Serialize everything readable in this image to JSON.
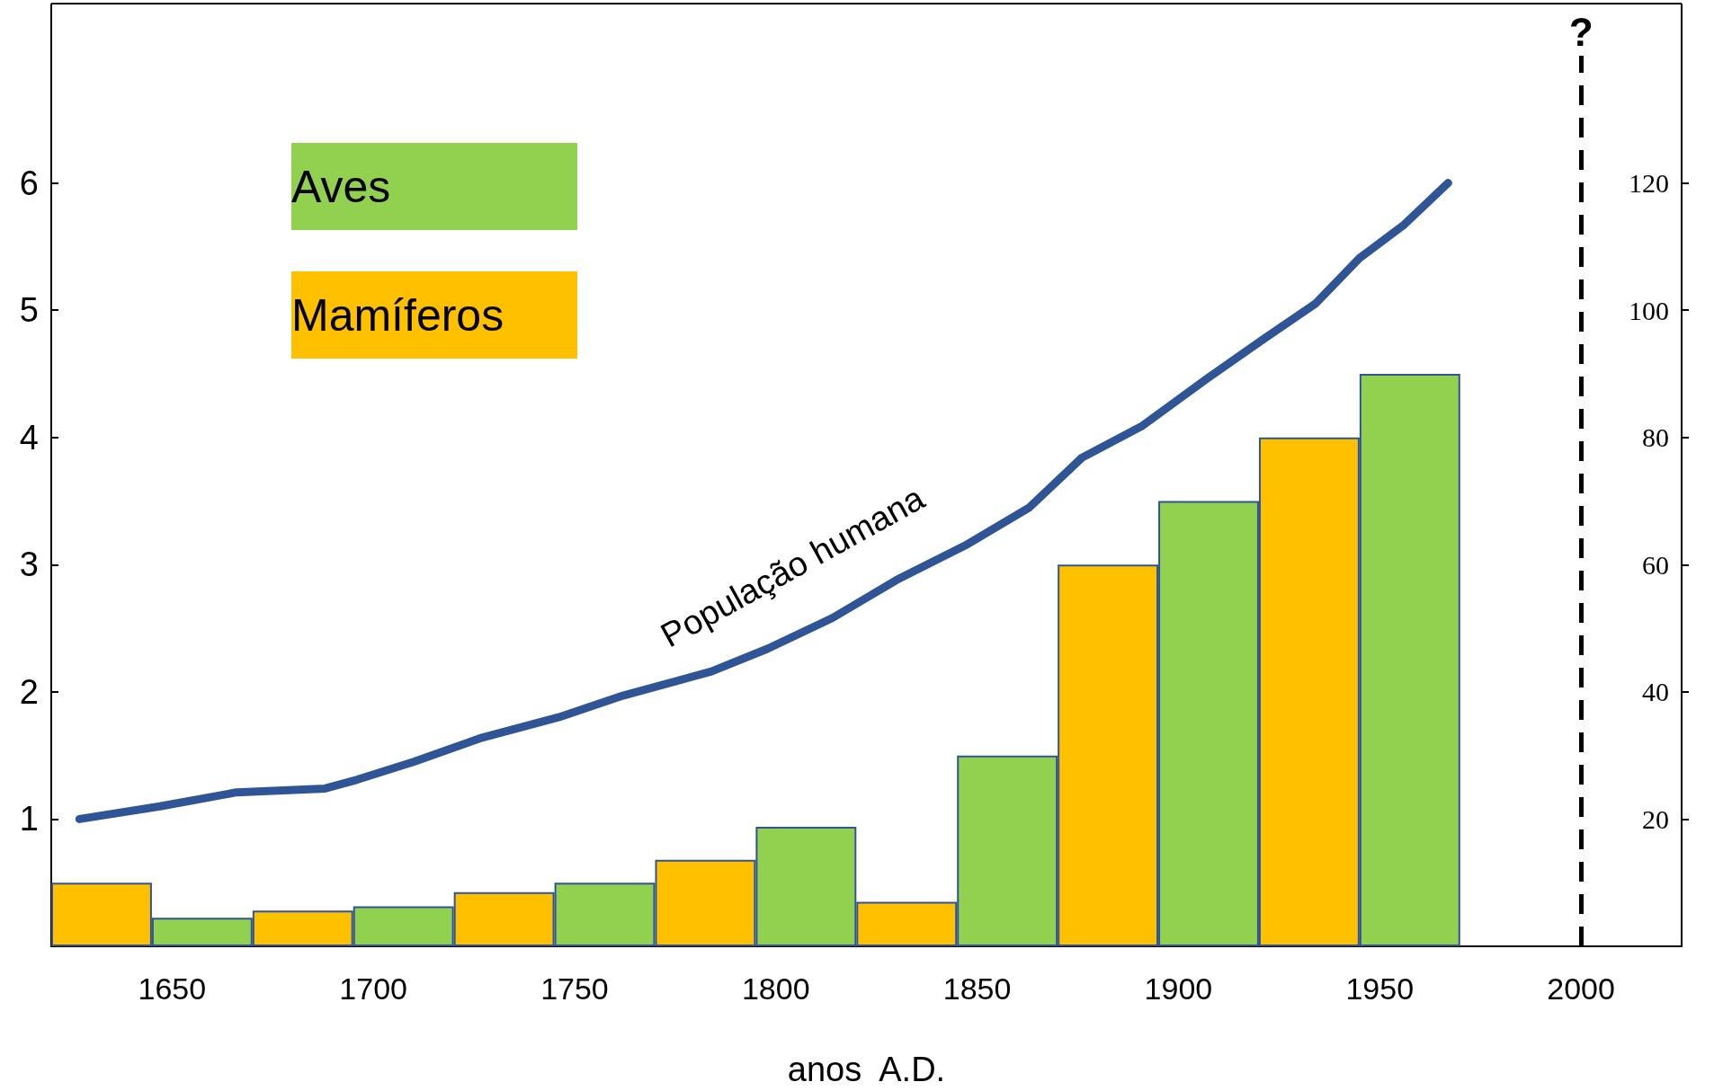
{
  "chart_data": {
    "type": "bar",
    "xlabel": "anos  A.D.",
    "xlim": [
      1620,
      2025
    ],
    "xticks": [
      1650,
      1700,
      1750,
      1800,
      1850,
      1900,
      1950,
      2000
    ],
    "ylim": [
      0,
      7
    ],
    "yticks": [
      1,
      2,
      3,
      4,
      5,
      6
    ],
    "y2lim": [
      0,
      140
    ],
    "y2ticks": [
      20,
      40,
      60,
      80,
      100,
      120
    ],
    "series": [
      {
        "name": "Aves",
        "axis": "y2",
        "color": "#92d050",
        "x": [
          1657.5,
          1707.5,
          1757.5,
          1807.5,
          1857.5,
          1907.5,
          1957.5
        ],
        "values": [
          4.5,
          6.3,
          10,
          18.8,
          30,
          70,
          90
        ]
      },
      {
        "name": "Mamíferos",
        "axis": "y2",
        "color": "#ffc000",
        "x": [
          1632.5,
          1682.5,
          1732.5,
          1782.5,
          1832.5,
          1882.5,
          1932.5
        ],
        "values": [
          10,
          5.6,
          8.5,
          13.6,
          7,
          60,
          80
        ]
      },
      {
        "name": "População humana",
        "type": "line",
        "color": "#2f5597",
        "x": [
          1627,
          1647,
          1666,
          1688,
          1696,
          1710,
          1727,
          1746,
          1762,
          1784,
          1798,
          1814,
          1830,
          1847,
          1863,
          1876,
          1891,
          1907,
          1921,
          1934,
          1945,
          1956,
          1967
        ],
        "values": [
          1.0,
          1.1,
          1.21,
          1.24,
          1.31,
          1.45,
          1.64,
          1.8,
          1.97,
          2.16,
          2.34,
          2.58,
          2.88,
          3.15,
          3.45,
          3.84,
          4.09,
          4.46,
          4.77,
          5.05,
          5.41,
          5.67,
          6.0
        ]
      }
    ],
    "ref_lines": [
      {
        "axis": "x",
        "value": 2000,
        "label": "?",
        "color": "#000000",
        "line_style": "dashed"
      }
    ],
    "legend": "top left",
    "grid": false,
    "marker": "none",
    "line_style": "solid"
  }
}
